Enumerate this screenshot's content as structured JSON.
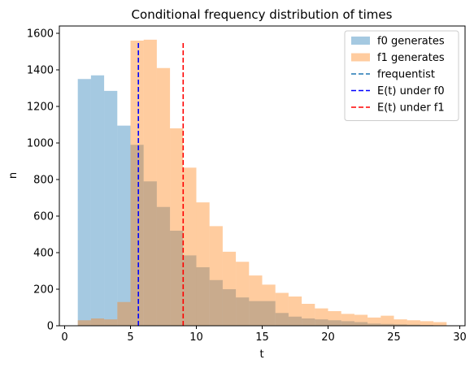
{
  "chart_data": {
    "type": "histogram",
    "title": "Conditional frequency distribution of times",
    "xlabel": "t",
    "ylabel": "n",
    "xlim": [
      -0.4,
      30.4
    ],
    "ylim": [
      0,
      1640
    ],
    "xticks": [
      0,
      5,
      10,
      15,
      20,
      25,
      30
    ],
    "yticks": [
      0,
      200,
      400,
      600,
      800,
      1000,
      1200,
      1400,
      1600
    ],
    "grid": false,
    "legend_position": "top-right",
    "bin_edges": [
      1.0,
      2.0,
      3.0,
      4.0,
      5.0,
      6.0,
      7.0,
      8.0,
      9.0,
      10.0,
      11.0,
      12.0,
      13.0,
      14.0,
      15.0,
      16.0,
      17.0,
      18.0,
      19.0,
      20.0,
      21.0,
      22.0,
      23.0,
      24.0,
      25.0,
      26.0,
      27.0,
      28.0,
      29.0
    ],
    "series": [
      {
        "name": "f0 generates",
        "kind": "hist",
        "color": "#1f77b4",
        "alpha": 0.4,
        "values": [
          1350,
          1370,
          1285,
          1095,
          990,
          790,
          650,
          520,
          385,
          320,
          250,
          200,
          155,
          135,
          135,
          70,
          50,
          40,
          35,
          30,
          25,
          20,
          12,
          10,
          8,
          6,
          4,
          2
        ]
      },
      {
        "name": "f1 generates",
        "kind": "hist",
        "color": "#ff7f0e",
        "alpha": 0.4,
        "values": [
          30,
          40,
          35,
          130,
          1560,
          1565,
          1410,
          1080,
          865,
          675,
          545,
          405,
          350,
          275,
          225,
          180,
          160,
          120,
          95,
          80,
          65,
          60,
          45,
          55,
          35,
          30,
          25,
          20
        ]
      },
      {
        "name": "frequentist",
        "kind": "vline",
        "color": "#1f77b4",
        "style": "dashed",
        "x": null
      },
      {
        "name": "E(t) under f0",
        "kind": "vline",
        "color": "#0000ff",
        "style": "dashed",
        "x": 5.6,
        "ymax": 1560
      },
      {
        "name": "E(t) under f1",
        "kind": "vline",
        "color": "#ff0000",
        "style": "dashed",
        "x": 9.0,
        "ymax": 1560
      }
    ]
  }
}
